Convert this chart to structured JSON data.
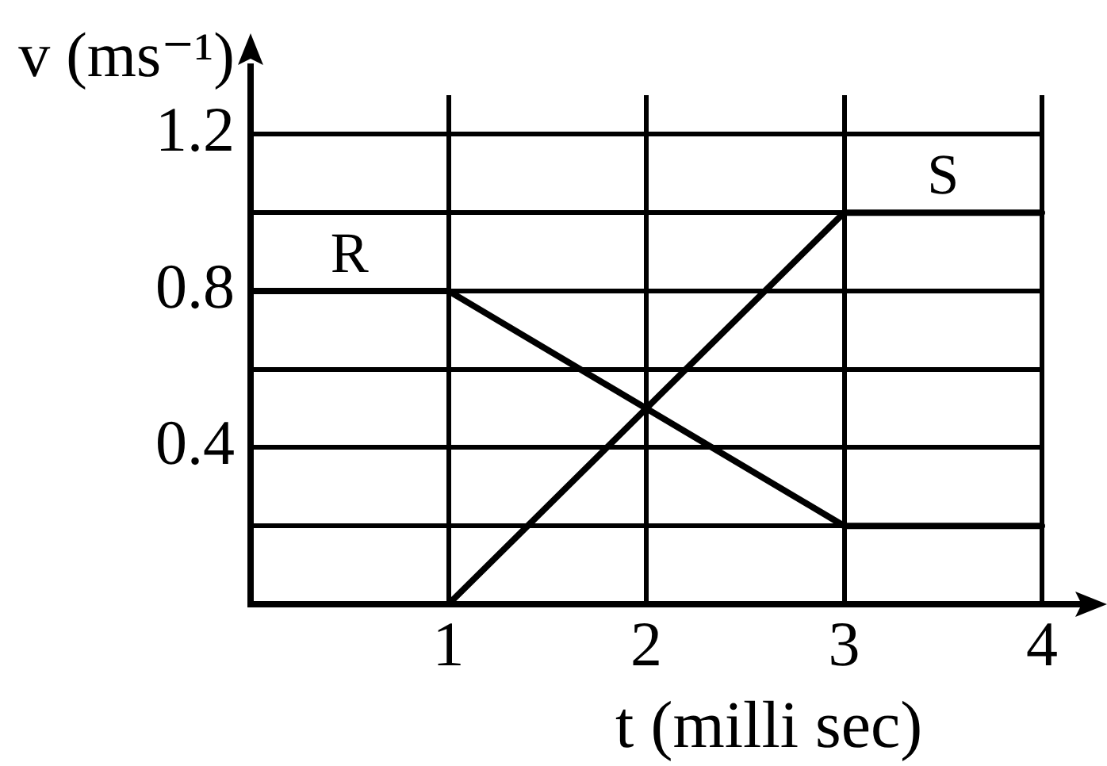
{
  "chart_data": {
    "type": "line",
    "xlabel": "t (milli sec)",
    "ylabel": "v (ms⁻¹)",
    "x": [
      0,
      1,
      3,
      4
    ],
    "series": [
      {
        "name": "R",
        "color": "#000000",
        "values": [
          0.8,
          0.8,
          0.2,
          0.2
        ]
      },
      {
        "name": "S",
        "color": "#000000",
        "values": [
          0,
          0,
          1,
          1
        ]
      }
    ],
    "xlim": [
      0,
      4
    ],
    "ylim": [
      0,
      1.3
    ],
    "xticks": [
      1,
      2,
      3,
      4
    ],
    "yticks": [
      {
        "value": 0.2,
        "label": null
      },
      0.4,
      {
        "value": 0.6,
        "label": null
      },
      0.8,
      {
        "value": 1,
        "label": null
      },
      1.2
    ],
    "grid": true,
    "legend": false,
    "marker": "none",
    "line_style": "solid"
  }
}
